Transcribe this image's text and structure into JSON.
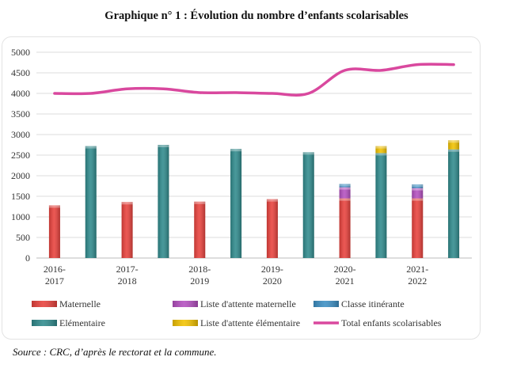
{
  "title": "Graphique n° 1 :  Évolution du nombre d’enfants scolarisables",
  "source": "Source : CRC, d’après le rectorat et la commune.",
  "colors": {
    "maternelle": "#e8413c",
    "liste_maternelle": "#b44fc0",
    "classe_itinerante": "#3c8fc4",
    "elementaire": "#2f8a8c",
    "liste_elementaire": "#f2c200",
    "total": "#d9489e"
  },
  "chart_data": {
    "type": "bar",
    "title": "",
    "ylim": [
      0,
      5000
    ],
    "yticks": [
      "0",
      "500",
      "1000",
      "1500",
      "2000",
      "2500",
      "3000",
      "3500",
      "4000",
      "4500",
      "5000"
    ],
    "grid": true,
    "legend_position": "bottom",
    "categories": [
      [
        "2016-",
        "2017"
      ],
      [
        "2017-",
        "2018"
      ],
      [
        "2018-",
        "2019"
      ],
      [
        "2019-",
        "2020"
      ],
      [
        "2020-",
        "2021"
      ],
      [
        "2021-",
        "2022"
      ]
    ],
    "series": [
      {
        "name": "Maternelle",
        "key": "maternelle",
        "values": [
          1280,
          1360,
          1370,
          1430,
          1450,
          1450
        ]
      },
      {
        "name": "Liste d'attente maternelle",
        "key": "liste_maternelle",
        "stack_on": "maternelle",
        "values": [
          0,
          0,
          0,
          0,
          270,
          250
        ]
      },
      {
        "name": "Classe itinérante",
        "key": "classe_itinerante",
        "stack_on": "maternelle",
        "values": [
          0,
          0,
          0,
          0,
          80,
          90
        ]
      },
      {
        "name": "Elémentaire",
        "key": "elementaire",
        "values": [
          2720,
          2750,
          2650,
          2570,
          2550,
          2640
        ]
      },
      {
        "name": "Liste d'attente élémentaire",
        "key": "liste_elementaire",
        "stack_on": "elementaire",
        "values": [
          0,
          0,
          0,
          0,
          170,
          220
        ]
      },
      {
        "name": "Total enfants scolarisables",
        "key": "total",
        "type": "line",
        "values": [
          4000,
          4110,
          4020,
          4000,
          4560,
          4700
        ]
      }
    ],
    "total_line_points": [
      4000,
      4000,
      4110,
      4110,
      4020,
      4020,
      4000,
      4000,
      4560,
      4560,
      4700,
      4700
    ]
  }
}
